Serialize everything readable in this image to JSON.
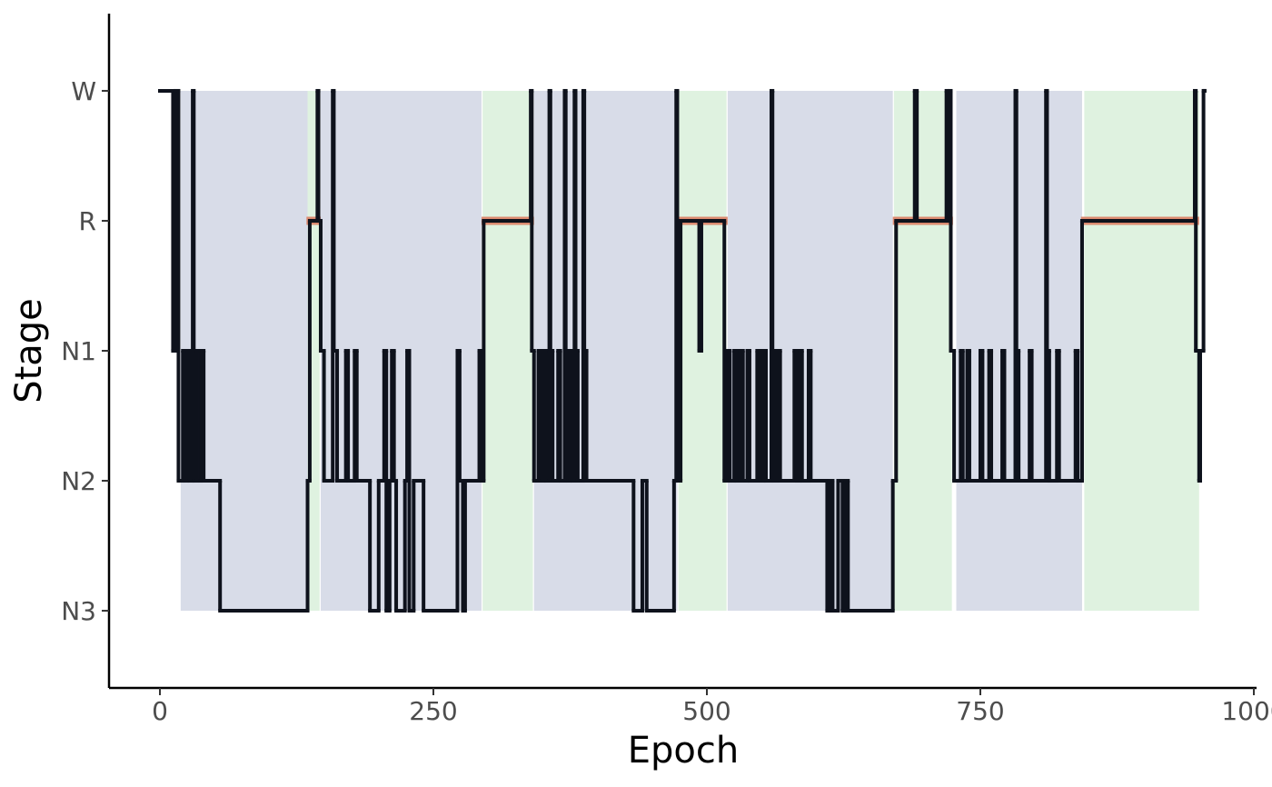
{
  "chart_data": {
    "type": "hypnogram",
    "x_label": "Epoch",
    "y_label": "Stage",
    "xlim": [
      -46.5,
      1002.5
    ],
    "xticks": [
      0,
      250,
      500,
      750,
      1000
    ],
    "ylim": [
      -0.594,
      4.594
    ],
    "yticks": [
      {
        "value": 0,
        "label": "N3"
      },
      {
        "value": 1,
        "label": "N2"
      },
      {
        "value": 2,
        "label": "N1"
      },
      {
        "value": 3,
        "label": "R"
      },
      {
        "value": 4,
        "label": "W"
      }
    ],
    "color": "#0e121c",
    "nrem_color": "#d8dce8",
    "rem_color": "#dff2e0",
    "rem_bar_color": "#dc8a70",
    "nrem_periods": [
      [
        19,
        135
      ],
      [
        147,
        294
      ],
      [
        342,
        473
      ],
      [
        519,
        670
      ],
      [
        728,
        843
      ]
    ],
    "rem_periods": [
      [
        135,
        146
      ],
      [
        295,
        341
      ],
      [
        474,
        518
      ],
      [
        671,
        724
      ],
      [
        845,
        950
      ]
    ],
    "rem_bars": [
      [
        134,
        147
      ],
      [
        294,
        342
      ],
      [
        473,
        519
      ],
      [
        670,
        725
      ],
      [
        842,
        950
      ]
    ],
    "x": [
      0,
      12,
      14,
      17,
      21,
      23,
      25,
      27,
      30,
      31,
      34,
      37,
      38,
      40,
      55,
      135,
      137,
      144,
      145,
      147,
      150,
      158,
      159,
      162,
      170,
      172,
      178,
      180,
      192,
      200,
      205,
      207,
      210,
      212,
      214,
      216,
      224,
      226,
      228,
      232,
      241,
      272,
      274,
      277,
      279,
      292,
      294,
      296,
      339,
      340,
      342,
      346,
      349,
      351,
      353,
      356,
      357,
      359,
      364,
      366,
      370,
      371,
      373,
      375,
      377,
      379,
      380,
      382,
      387,
      388,
      390,
      433,
      441,
      445,
      470,
      472,
      473,
      476,
      493,
      495,
      516,
      519,
      521,
      525,
      527,
      530,
      533,
      537,
      539,
      546,
      549,
      552,
      554,
      559,
      560,
      562,
      565,
      567,
      580,
      582,
      585,
      587,
      593,
      595,
      610,
      612,
      615,
      620,
      624,
      627,
      629,
      670,
      673,
      690,
      692,
      719,
      720,
      722,
      723,
      726,
      732,
      734,
      738,
      740,
      750,
      752,
      758,
      760,
      770,
      772,
      782,
      783,
      785,
      795,
      797,
      810,
      811,
      813,
      820,
      822,
      837,
      839,
      843,
      946,
      947,
      950,
      951,
      954,
      955
    ],
    "values": [
      4,
      2,
      4,
      1,
      2,
      1,
      2,
      1,
      4,
      1,
      2,
      1,
      2,
      1,
      0,
      1,
      3,
      4,
      3,
      2,
      1,
      4,
      2,
      1,
      2,
      1,
      2,
      1,
      0,
      1,
      2,
      0,
      1,
      2,
      1,
      0,
      1,
      2,
      0,
      1,
      0,
      2,
      1,
      0,
      1,
      2,
      1,
      3,
      4,
      2,
      1,
      2,
      1,
      2,
      1,
      4,
      2,
      1,
      2,
      1,
      4,
      2,
      1,
      2,
      1,
      4,
      2,
      1,
      4,
      2,
      1,
      0,
      1,
      0,
      1,
      4,
      1,
      3,
      2,
      3,
      1,
      2,
      1,
      2,
      1,
      2,
      1,
      2,
      1,
      2,
      1,
      2,
      1,
      4,
      2,
      1,
      2,
      1,
      2,
      1,
      2,
      1,
      2,
      1,
      0,
      1,
      0,
      1,
      0,
      1,
      0,
      1,
      3,
      4,
      3,
      4,
      3,
      4,
      2,
      1,
      2,
      1,
      2,
      1,
      2,
      1,
      2,
      1,
      2,
      1,
      4,
      2,
      1,
      2,
      1,
      4,
      2,
      1,
      2,
      1,
      2,
      1,
      3,
      4,
      2,
      1,
      2,
      4,
      4
    ]
  }
}
